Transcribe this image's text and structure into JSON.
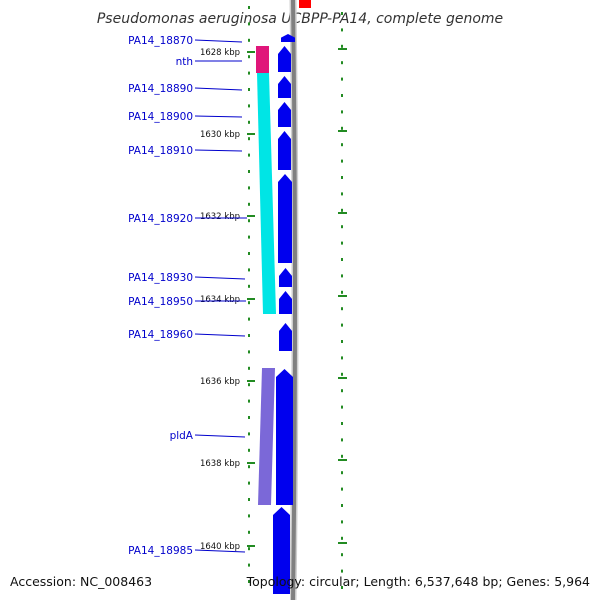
{
  "title": "Pseudomonas aeruginosa UCBPP-PA14, complete genome",
  "accession": "Accession: NC_008463",
  "topology": "Topology: circular; Length: 6,537,648 bp; Genes: 5,964",
  "colors": {
    "gene": "#0000ee",
    "label": "#0000cc",
    "tick": "#228b22",
    "backbone": "#808080",
    "marker": "#ff0000",
    "feature_magenta": "#e0167a",
    "feature_cyan": "#00e5e5",
    "feature_purple": "#7b68d8"
  },
  "kbp_ticks": [
    {
      "label": "1628 kbp",
      "pos_kbp": 1628
    },
    {
      "label": "1630 kbp",
      "pos_kbp": 1630
    },
    {
      "label": "1632 kbp",
      "pos_kbp": 1632
    },
    {
      "label": "1634 kbp",
      "pos_kbp": 1634
    },
    {
      "label": "1636 kbp",
      "pos_kbp": 1636
    },
    {
      "label": "1638 kbp",
      "pos_kbp": 1638
    },
    {
      "label": "1640 kbp",
      "pos_kbp": 1640
    }
  ],
  "gene_labels": [
    {
      "name": "PA14_18870"
    },
    {
      "name": "nth"
    },
    {
      "name": "PA14_18890"
    },
    {
      "name": "PA14_18900"
    },
    {
      "name": "PA14_18910"
    },
    {
      "name": "PA14_18920"
    },
    {
      "name": "PA14_18930"
    },
    {
      "name": "PA14_18950"
    },
    {
      "name": "PA14_18960"
    },
    {
      "name": "pldA"
    },
    {
      "name": "PA14_18985"
    }
  ]
}
